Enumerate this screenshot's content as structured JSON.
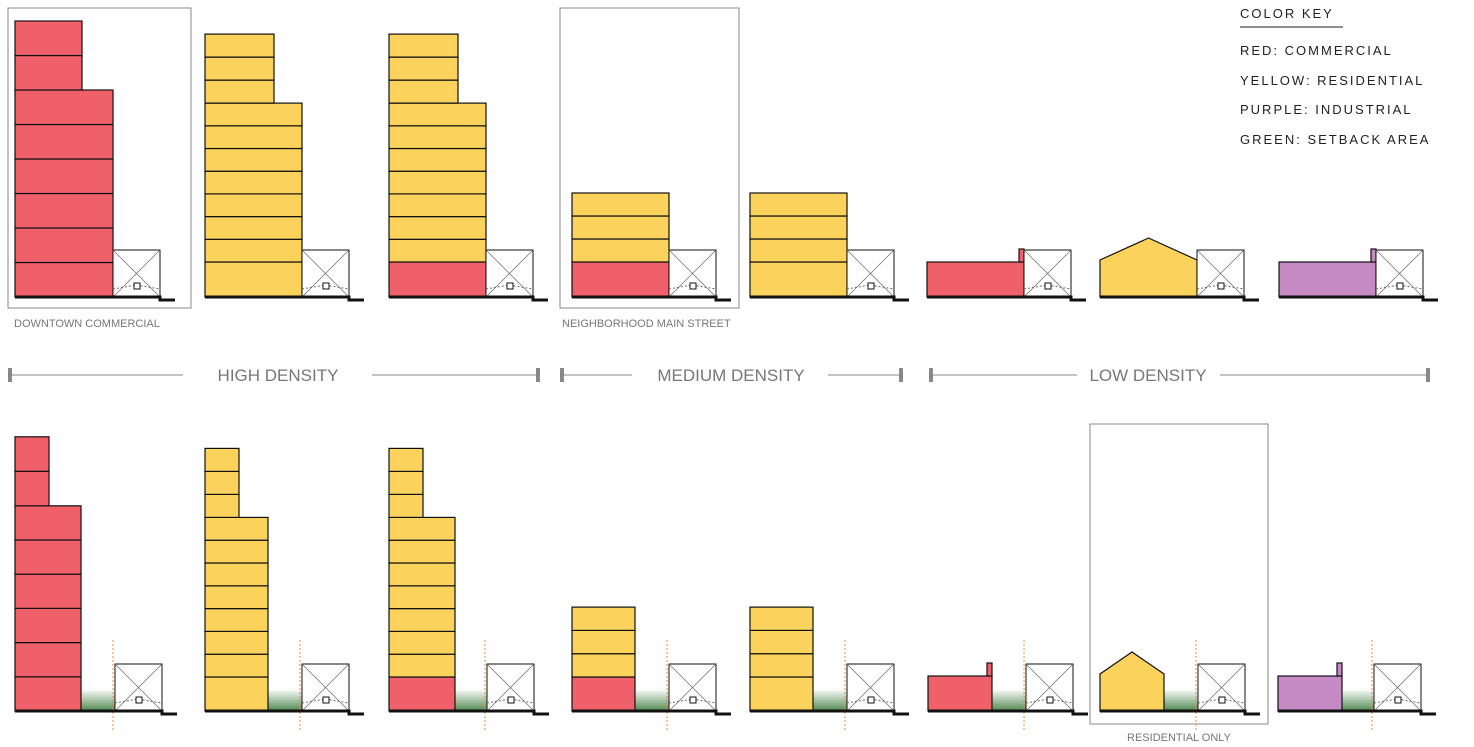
{
  "color_key": {
    "title": "COLOR KEY",
    "items": [
      "RED: COMMERCIAL",
      "YELLOW: RESIDENTIAL",
      "PURPLE: INDUSTRIAL",
      "GREEN: SETBACK AREA"
    ]
  },
  "labels": [
    "DOWNTOWN COMMERCIAL",
    "NEIGHBORHOOD MAIN STREET",
    "RESIDENTIAL ONLY"
  ],
  "density_bands": [
    "HIGH DENSITY",
    "MEDIUM DENSITY",
    "LOW DENSITY"
  ]
}
